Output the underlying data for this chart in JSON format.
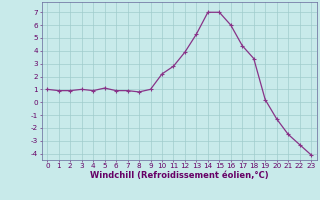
{
  "x": [
    0,
    1,
    2,
    3,
    4,
    5,
    6,
    7,
    8,
    9,
    10,
    11,
    12,
    13,
    14,
    15,
    16,
    17,
    18,
    19,
    20,
    21,
    22,
    23
  ],
  "y": [
    1.0,
    0.9,
    0.9,
    1.0,
    0.9,
    1.1,
    0.9,
    0.9,
    0.8,
    1.0,
    2.2,
    2.8,
    3.9,
    5.3,
    7.0,
    7.0,
    6.0,
    4.4,
    3.4,
    0.2,
    -1.3,
    -2.5,
    -3.3,
    -4.1
  ],
  "line_color": "#883388",
  "marker": "+",
  "marker_size": 3,
  "marker_lw": 0.8,
  "line_width": 0.9,
  "bg_color": "#c8eaea",
  "grid_color": "#a0cccc",
  "xlabel": "Windchill (Refroidissement éolien,°C)",
  "ylim": [
    -4.5,
    7.8
  ],
  "xlim": [
    -0.5,
    23.5
  ],
  "yticks": [
    -4,
    -3,
    -2,
    -1,
    0,
    1,
    2,
    3,
    4,
    5,
    6,
    7
  ],
  "xticks": [
    0,
    1,
    2,
    3,
    4,
    5,
    6,
    7,
    8,
    9,
    10,
    11,
    12,
    13,
    14,
    15,
    16,
    17,
    18,
    19,
    20,
    21,
    22,
    23
  ],
  "tick_label_fontsize": 5.2,
  "xlabel_fontsize": 6.0,
  "axis_color": "#660066",
  "spine_color": "#666699"
}
